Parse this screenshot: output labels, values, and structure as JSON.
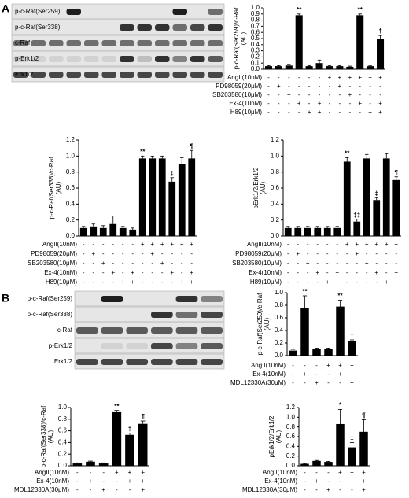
{
  "panel_labels": [
    "A",
    "B"
  ],
  "blots": [
    {
      "labels": [
        "p-c-Raf(Ser259)",
        "p-c-Raf(Ser338)",
        "c-Raf",
        "p-Erk1/2",
        "Erk1/2"
      ]
    },
    {
      "labels": [
        "p-c-Raf(Ser259)",
        "p-c-Raf(Ser338)",
        "c-Raf",
        "p-Erk1/2",
        "Erk1/2"
      ]
    }
  ],
  "chart_data": [
    {
      "type": "bar",
      "ylabel": "p-c-Raf(Ser259)/c-Raf",
      "ylabel_unit": "(AU)",
      "color": "#000000",
      "values": [
        0.05,
        0.05,
        0.06,
        0.88,
        0.05,
        0.1,
        0.05,
        0.05,
        0.04,
        0.88,
        0.05,
        0.5
      ],
      "errors": [
        0.01,
        0.01,
        0.02,
        0.02,
        0.01,
        0.05,
        0.01,
        0.01,
        0.01,
        0.02,
        0.01,
        0.05
      ],
      "ylim": [
        0,
        1.0
      ],
      "yticks": [
        {
          "value": 0,
          "label": "0.0"
        },
        0.1,
        0.2,
        0.3,
        0.4,
        0.5,
        0.6,
        0.7,
        0.8,
        0.9,
        {
          "value": 1,
          "label": "1.0"
        }
      ],
      "annotations": [
        {
          "index": 3,
          "text": "**"
        },
        {
          "index": 9,
          "text": "**"
        },
        {
          "index": 11,
          "text": "†"
        }
      ],
      "treatments": [
        {
          "label": "AngII(10nM)",
          "signs": [
            "-",
            "-",
            "-",
            "-",
            "-",
            "-",
            "+",
            "+",
            "+",
            "+",
            "+",
            "+"
          ]
        },
        {
          "label": "PD98059(20μM)",
          "signs": [
            "-",
            "+",
            "-",
            "-",
            "-",
            "-",
            "-",
            "+",
            "-",
            "-",
            "-",
            "-"
          ]
        },
        {
          "label": "SB203580(10μM)",
          "signs": [
            "-",
            "-",
            "+",
            "-",
            "-",
            "-",
            "-",
            "-",
            "+",
            "-",
            "-",
            "-"
          ]
        },
        {
          "label": "Ex-4(10nM)",
          "signs": [
            "-",
            "-",
            "-",
            "+",
            "-",
            "+",
            "-",
            "-",
            "-",
            "+",
            "-",
            "+"
          ]
        },
        {
          "label": "H89(10μM)",
          "signs": [
            "-",
            "-",
            "-",
            "-",
            "+",
            "+",
            "-",
            "-",
            "-",
            "-",
            "+",
            "+"
          ]
        }
      ]
    },
    {
      "type": "bar",
      "ylabel": "p-c-Raf(Ser338)/c-Raf",
      "ylabel_unit": "(AU)",
      "color": "#000000",
      "values": [
        0.1,
        0.12,
        0.1,
        0.15,
        0.1,
        0.08,
        0.97,
        0.97,
        0.97,
        0.68,
        0.9,
        0.97
      ],
      "errors": [
        0.02,
        0.03,
        0.03,
        0.1,
        0.02,
        0.02,
        0.03,
        0.03,
        0.03,
        0.05,
        0.08,
        0.1
      ],
      "ylim": [
        0,
        1.2
      ],
      "yticks": [
        {
          "value": 0,
          "label": "0.0"
        },
        0.2,
        0.4,
        0.6,
        0.8,
        {
          "value": 1,
          "label": "1.0"
        },
        1.2
      ],
      "annotations": [
        {
          "index": 6,
          "text": "**"
        },
        {
          "index": 9,
          "text": "‡"
        },
        {
          "index": 11,
          "text": "¶"
        }
      ],
      "treatments": [
        {
          "label": "AngII(10nM)",
          "signs": [
            "-",
            "-",
            "-",
            "-",
            "-",
            "-",
            "+",
            "+",
            "+",
            "+",
            "+",
            "+"
          ]
        },
        {
          "label": "PD98059(20μM)",
          "signs": [
            "-",
            "+",
            "-",
            "-",
            "-",
            "-",
            "-",
            "+",
            "-",
            "-",
            "-",
            "-"
          ]
        },
        {
          "label": "SB203580(10μM)",
          "signs": [
            "-",
            "-",
            "+",
            "-",
            "-",
            "-",
            "-",
            "-",
            "+",
            "-",
            "-",
            "-"
          ]
        },
        {
          "label": "Ex-4(10nM)",
          "signs": [
            "-",
            "-",
            "-",
            "+",
            "-",
            "+",
            "-",
            "-",
            "-",
            "+",
            "-",
            "+"
          ]
        },
        {
          "label": "H89(10μM)",
          "signs": [
            "-",
            "-",
            "-",
            "-",
            "+",
            "+",
            "-",
            "-",
            "-",
            "-",
            "+",
            "+"
          ]
        }
      ]
    },
    {
      "type": "bar",
      "ylabel": "pErk1/2/Erk1/2",
      "ylabel_unit": "(AU)",
      "color": "#000000",
      "values": [
        0.1,
        0.1,
        0.1,
        0.1,
        0.1,
        0.1,
        0.93,
        0.18,
        0.97,
        0.45,
        0.97,
        0.7
      ],
      "errors": [
        0.02,
        0.02,
        0.02,
        0.02,
        0.02,
        0.02,
        0.05,
        0.03,
        0.05,
        0.03,
        0.06,
        0.04
      ],
      "ylim": [
        0,
        1.2
      ],
      "yticks": [
        {
          "value": 0,
          "label": "0.0"
        },
        0.2,
        0.4,
        0.6,
        0.8,
        {
          "value": 1,
          "label": "1.0"
        },
        1.2
      ],
      "annotations": [
        {
          "index": 6,
          "text": "**"
        },
        {
          "index": 7,
          "text": "‡‡"
        },
        {
          "index": 9,
          "text": "‡"
        },
        {
          "index": 11,
          "text": "¶"
        }
      ],
      "treatments": [
        {
          "label": "AngII(10nM)",
          "signs": [
            "-",
            "-",
            "-",
            "-",
            "-",
            "-",
            "+",
            "+",
            "+",
            "+",
            "+",
            "+"
          ]
        },
        {
          "label": "PD98059(20μM)",
          "signs": [
            "-",
            "+",
            "-",
            "-",
            "-",
            "-",
            "-",
            "+",
            "-",
            "-",
            "-",
            "-"
          ]
        },
        {
          "label": "SB203580(10μM)",
          "signs": [
            "-",
            "-",
            "+",
            "-",
            "-",
            "-",
            "-",
            "-",
            "+",
            "-",
            "-",
            "-"
          ]
        },
        {
          "label": "Ex-4(10nM)",
          "signs": [
            "-",
            "-",
            "-",
            "+",
            "-",
            "+",
            "-",
            "-",
            "-",
            "+",
            "-",
            "+"
          ]
        },
        {
          "label": "H89(10μM)",
          "signs": [
            "-",
            "-",
            "-",
            "-",
            "+",
            "+",
            "-",
            "-",
            "-",
            "-",
            "+",
            "+"
          ]
        }
      ]
    },
    {
      "type": "bar",
      "ylabel": "p-c-Raf(Ser259)/c-Raf",
      "ylabel_unit": "(AU)",
      "color": "#000000",
      "values": [
        0.08,
        0.75,
        0.1,
        0.1,
        0.78,
        0.23
      ],
      "errors": [
        0.02,
        0.2,
        0.02,
        0.02,
        0.1,
        0.02
      ],
      "ylim": [
        0,
        1.0
      ],
      "yticks": [
        {
          "value": 0,
          "label": "0.0"
        },
        0.2,
        0.4,
        0.6,
        0.8,
        {
          "value": 1,
          "label": "1.0"
        }
      ],
      "annotations": [
        {
          "index": 1,
          "text": "**"
        },
        {
          "index": 4,
          "text": "**"
        },
        {
          "index": 5,
          "text": "†"
        }
      ],
      "treatments": [
        {
          "label": "AngII(10nM)",
          "signs": [
            "-",
            "-",
            "-",
            "+",
            "+",
            "+"
          ]
        },
        {
          "label": "Ex-4(10nM)",
          "signs": [
            "-",
            "+",
            "-",
            "-",
            "+",
            "+"
          ]
        },
        {
          "label": "MDL12330A(30μM)",
          "signs": [
            "-",
            "-",
            "+",
            "-",
            "-",
            "+"
          ]
        }
      ]
    },
    {
      "type": "bar",
      "ylabel": "p-c-Raf(Ser338)/c-Raf",
      "ylabel_unit": "(AU)",
      "color": "#000000",
      "values": [
        0.04,
        0.07,
        0.04,
        0.92,
        0.53,
        0.72
      ],
      "errors": [
        0.01,
        0.01,
        0.01,
        0.03,
        0.03,
        0.05
      ],
      "ylim": [
        0,
        1.0
      ],
      "yticks": [
        {
          "value": 0,
          "label": "0.0"
        },
        0.2,
        0.4,
        0.6,
        0.8,
        {
          "value": 1,
          "label": "1.0"
        }
      ],
      "annotations": [
        {
          "index": 3,
          "text": "**"
        },
        {
          "index": 4,
          "text": "‡"
        },
        {
          "index": 5,
          "text": "¶"
        }
      ],
      "treatments": [
        {
          "label": "AngII(10nM)",
          "signs": [
            "-",
            "-",
            "-",
            "+",
            "+",
            "+"
          ]
        },
        {
          "label": "Ex-4(10nM)",
          "signs": [
            "-",
            "+",
            "-",
            "-",
            "+",
            "+"
          ]
        },
        {
          "label": "MDL12330A(30μM)",
          "signs": [
            "-",
            "-",
            "+",
            "-",
            "-",
            "+"
          ]
        }
      ]
    },
    {
      "type": "bar",
      "ylabel": "pErk1/2/Erk1/2",
      "ylabel_unit": "(AU)",
      "color": "#000000",
      "values": [
        0.04,
        0.1,
        0.08,
        0.86,
        0.38,
        0.7
      ],
      "errors": [
        0.01,
        0.01,
        0.01,
        0.3,
        0.1,
        0.25
      ],
      "ylim": [
        0,
        1.2
      ],
      "yticks": [
        {
          "value": 0,
          "label": "0.0"
        },
        0.2,
        0.4,
        0.6,
        0.8,
        {
          "value": 1,
          "label": "1.0"
        },
        1.2
      ],
      "annotations": [
        {
          "index": 3,
          "text": "*"
        },
        {
          "index": 4,
          "text": "‡"
        },
        {
          "index": 5,
          "text": "¶"
        }
      ],
      "treatments": [
        {
          "label": "AngII(10nM)",
          "signs": [
            "-",
            "-",
            "-",
            "+",
            "+",
            "+"
          ]
        },
        {
          "label": "Ex-4(10nM)",
          "signs": [
            "-",
            "+",
            "-",
            "-",
            "+",
            "+"
          ]
        },
        {
          "label": "MDL12330A(30μM)",
          "signs": [
            "-",
            "-",
            "+",
            "-",
            "-",
            "+"
          ]
        }
      ]
    }
  ]
}
